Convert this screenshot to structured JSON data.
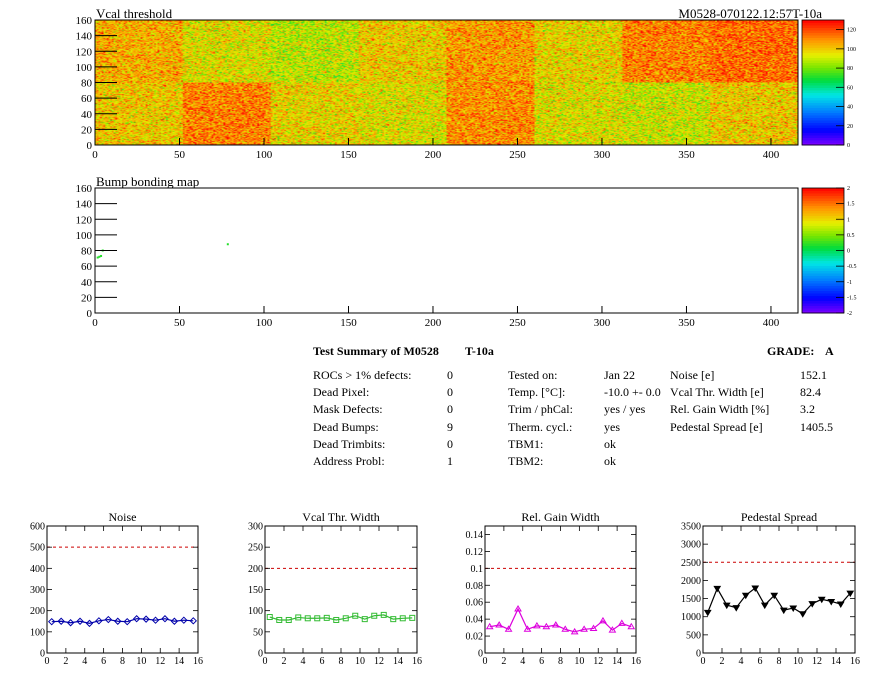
{
  "header": {
    "vcal_title": "Vcal threshold",
    "module_id": "M0528-070122.12:57T-10a",
    "bump_title": "Bump bonding map"
  },
  "summary": {
    "title": "Test Summary of M0528",
    "temp_label": "T-10a",
    "grade_label": "GRADE:",
    "grade_value": "A",
    "col1": [
      {
        "label": "ROCs > 1% defects:",
        "value": "0"
      },
      {
        "label": "Dead Pixel:",
        "value": "0"
      },
      {
        "label": "Mask Defects:",
        "value": "0"
      },
      {
        "label": "Dead Bumps:",
        "value": "9"
      },
      {
        "label": "Dead Trimbits:",
        "value": "0"
      },
      {
        "label": "Address Probl:",
        "value": "1"
      }
    ],
    "col2": [
      {
        "label": "Tested on:",
        "value": "Jan 22"
      },
      {
        "label": "Temp. [°C]:",
        "value": "-10.0 +- 0.0"
      },
      {
        "label": "Trim / phCal:",
        "value": "yes / yes"
      },
      {
        "label": "Therm. cycl.:",
        "value": "yes"
      },
      {
        "label": "TBM1:",
        "value": "ok"
      },
      {
        "label": "TBM2:",
        "value": "ok"
      }
    ],
    "col3": [
      {
        "label": "Noise [e]",
        "value": "152.1"
      },
      {
        "label": "Vcal Thr. Width [e]",
        "value": "82.4"
      },
      {
        "label": "Rel. Gain Width [%]",
        "value": "3.2"
      },
      {
        "label": "Pedestal Spread [e]",
        "value": "1405.5"
      }
    ]
  },
  "chart_data": [
    {
      "type": "heatmap",
      "title": "Vcal threshold",
      "xlim": [
        0,
        416
      ],
      "ylim": [
        0,
        160
      ],
      "x_ticks": [
        0,
        50,
        100,
        150,
        200,
        250,
        300,
        350,
        400
      ],
      "y_ticks": [
        0,
        20,
        40,
        60,
        80,
        100,
        120,
        140,
        160
      ],
      "colorbar_ticks": [
        0,
        20,
        40,
        60,
        80,
        100,
        120
      ],
      "colorbar_range": [
        0,
        130
      ],
      "roc_means": [
        [
          105,
          95,
          90,
          100,
          108,
          98,
          112,
          115
        ],
        [
          100,
          112,
          98,
          95,
          110,
          95,
          92,
          100
        ]
      ],
      "colors": {
        "low": "#7f00ff",
        "mid": "#00e000",
        "high": "#ff0000"
      }
    },
    {
      "type": "heatmap",
      "title": "Bump bonding map",
      "xlim": [
        0,
        416
      ],
      "ylim": [
        0,
        160
      ],
      "x_ticks": [
        0,
        50,
        100,
        150,
        200,
        250,
        300,
        350,
        400
      ],
      "y_ticks": [
        0,
        20,
        40,
        60,
        80,
        100,
        120,
        140,
        160
      ],
      "colorbar_ticks": [
        -2,
        -1.5,
        -1,
        -0.5,
        0,
        0.5,
        1,
        1.5,
        2
      ],
      "colorbar_tick_labels": [
        "-2",
        "-1.5",
        "-1",
        "-0.5",
        "0",
        "0.5",
        "1",
        "1.5",
        "2"
      ],
      "colorbar_range": [
        -2,
        2
      ],
      "points": [
        [
          1,
          71
        ],
        [
          2,
          72
        ],
        [
          3,
          73
        ],
        [
          4,
          80
        ],
        [
          78,
          88
        ]
      ]
    },
    {
      "type": "line",
      "title": "Noise",
      "xlim": [
        0,
        16
      ],
      "ylim": [
        0,
        600
      ],
      "x_ticks": [
        0,
        2,
        4,
        6,
        8,
        10,
        12,
        14,
        16
      ],
      "y_ticks": [
        0,
        100,
        200,
        300,
        400,
        500,
        600
      ],
      "y_tick_labels": [
        "0",
        "100",
        "200",
        "300",
        "400",
        "500",
        "600"
      ],
      "threshold": 500,
      "marker": "diamond",
      "color": "#0000aa",
      "x": [
        0.5,
        1.5,
        2.5,
        3.5,
        4.5,
        5.5,
        6.5,
        7.5,
        8.5,
        9.5,
        10.5,
        11.5,
        12.5,
        13.5,
        14.5,
        15.5
      ],
      "values": [
        148,
        150,
        143,
        150,
        140,
        152,
        158,
        150,
        148,
        162,
        160,
        155,
        162,
        150,
        155,
        152
      ]
    },
    {
      "type": "line",
      "title": "Vcal Thr. Width",
      "xlim": [
        0,
        16
      ],
      "ylim": [
        0,
        300
      ],
      "x_ticks": [
        0,
        2,
        4,
        6,
        8,
        10,
        12,
        14,
        16
      ],
      "y_ticks": [
        0,
        50,
        100,
        150,
        200,
        250,
        300
      ],
      "y_tick_labels": [
        "0",
        "50",
        "100",
        "150",
        "200",
        "250",
        "300"
      ],
      "threshold": 200,
      "marker": "square",
      "color": "#33bb33",
      "x": [
        0.5,
        1.5,
        2.5,
        3.5,
        4.5,
        5.5,
        6.5,
        7.5,
        8.5,
        9.5,
        10.5,
        11.5,
        12.5,
        13.5,
        14.5,
        15.5
      ],
      "values": [
        85,
        78,
        78,
        84,
        82,
        82,
        83,
        78,
        82,
        88,
        80,
        88,
        90,
        80,
        82,
        83
      ]
    },
    {
      "type": "line",
      "title": "Rel. Gain Width",
      "xlim": [
        0,
        16
      ],
      "ylim": [
        0,
        0.15
      ],
      "x_ticks": [
        0,
        2,
        4,
        6,
        8,
        10,
        12,
        14,
        16
      ],
      "y_ticks": [
        0,
        0.02,
        0.04,
        0.06,
        0.08,
        0.1,
        0.12,
        0.14
      ],
      "y_tick_labels": [
        "0",
        "0.02",
        "0.04",
        "0.06",
        "0.08",
        "0.1",
        "0.12",
        "0.14"
      ],
      "threshold": 0.1,
      "marker": "triangle",
      "color": "#dd00dd",
      "x": [
        0.5,
        1.5,
        2.5,
        3.5,
        4.5,
        5.5,
        6.5,
        7.5,
        8.5,
        9.5,
        10.5,
        11.5,
        12.5,
        13.5,
        14.5,
        15.5
      ],
      "values": [
        0.031,
        0.033,
        0.028,
        0.052,
        0.028,
        0.032,
        0.031,
        0.033,
        0.028,
        0.025,
        0.028,
        0.029,
        0.038,
        0.027,
        0.035,
        0.031
      ]
    },
    {
      "type": "line",
      "title": "Pedestal Spread",
      "xlim": [
        0,
        16
      ],
      "ylim": [
        0,
        3500
      ],
      "x_ticks": [
        0,
        2,
        4,
        6,
        8,
        10,
        12,
        14,
        16
      ],
      "y_ticks": [
        0,
        500,
        1000,
        1500,
        2000,
        2500,
        3000,
        3500
      ],
      "y_tick_labels": [
        "0",
        "500",
        "1000",
        "1500",
        "2000",
        "2500",
        "3000",
        "3500"
      ],
      "threshold": 2500,
      "marker": "triangle-down",
      "color": "#000000",
      "x": [
        0.5,
        1.5,
        2.5,
        3.5,
        4.5,
        5.5,
        6.5,
        7.5,
        8.5,
        9.5,
        10.5,
        11.5,
        12.5,
        13.5,
        14.5,
        15.5
      ],
      "values": [
        1120,
        1780,
        1320,
        1250,
        1590,
        1790,
        1320,
        1590,
        1180,
        1240,
        1080,
        1360,
        1480,
        1420,
        1350,
        1650
      ]
    }
  ]
}
